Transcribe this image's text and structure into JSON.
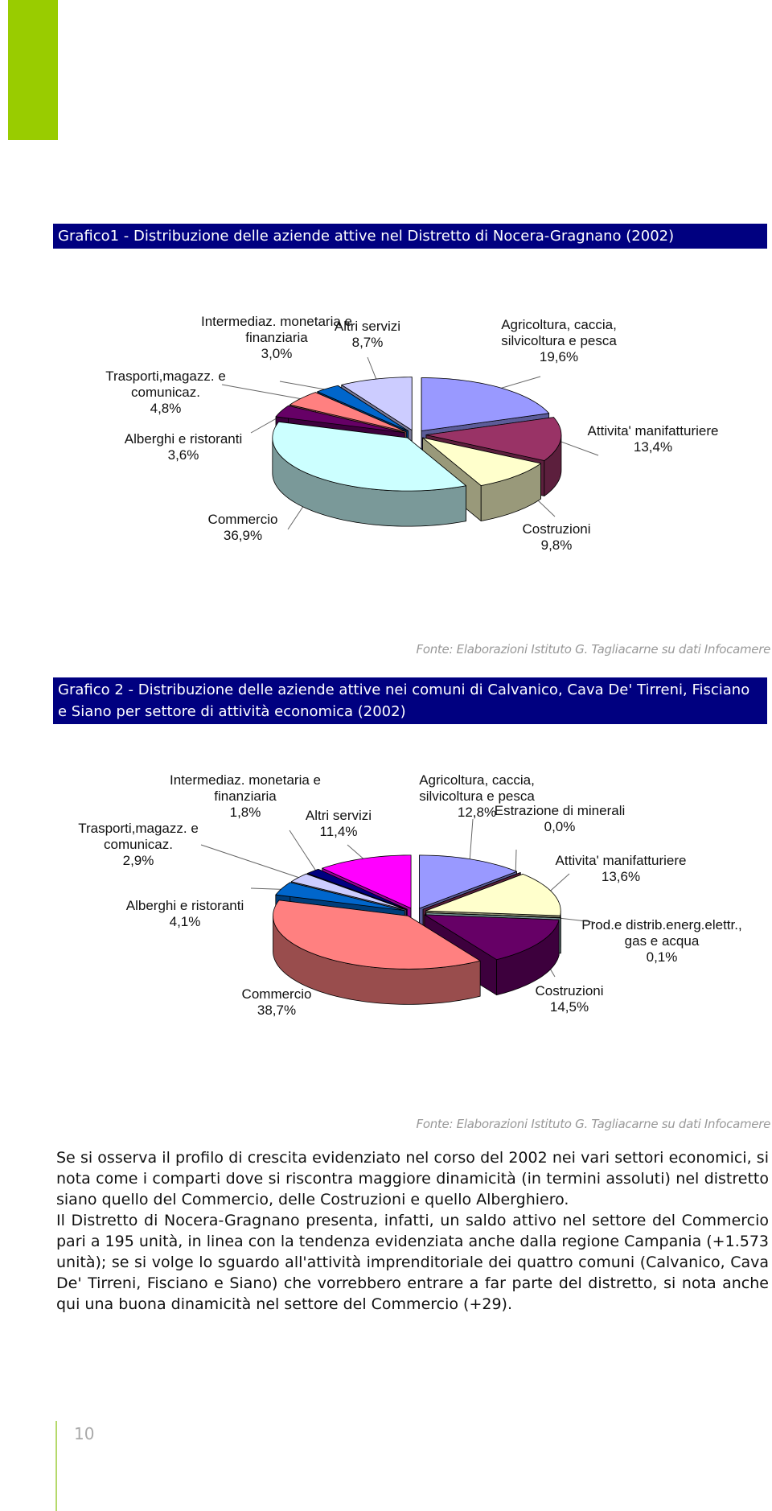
{
  "chart_data": [
    {
      "type": "pie",
      "title": "Grafico1 - Distribuzione delle aziende attive nel Distretto di Nocera-Gragnano (2002)",
      "categories": [
        "Agricoltura, caccia, silvicoltura e pesca",
        "Attivita' manifatturiere",
        "Costruzioni",
        "Commercio",
        "Alberghi e ristoranti",
        "Trasporti,magazz. e comunicaz.",
        "Intermediaz. monetaria e finanziaria",
        "Altri servizi"
      ],
      "values": [
        19.6,
        13.4,
        9.8,
        36.9,
        3.6,
        4.8,
        3.0,
        8.7
      ],
      "value_labels": [
        "19,6%",
        "13,4%",
        "9,8%",
        "36,9%",
        "3,6%",
        "4,8%",
        "3,0%",
        "8,7%"
      ],
      "colors": [
        "#9999ff",
        "#993366",
        "#ffffcc",
        "#ccffff",
        "#660066",
        "#ff8080",
        "#0066cc",
        "#ccccff"
      ],
      "source": "Fonte: Elaborazioni Istituto G. Tagliacarne su dati Infocamere"
    },
    {
      "type": "pie",
      "title": "Grafico 2 - Distribuzione delle aziende attive nei comuni di Calvanico, Cava De' Tirreni, Fisciano e Siano per settore di attività economica (2002)",
      "categories": [
        "Agricoltura, caccia, silvicoltura e pesca",
        "Estrazione di minerali",
        "Attivita' manifatturiere",
        "Prod.e distrib.energ.elettr., gas e acqua",
        "Costruzioni",
        "Commercio",
        "Alberghi e ristoranti",
        "Trasporti,magazz. e comunicaz.",
        "Intermediaz. monetaria e finanziaria",
        "Altri servizi"
      ],
      "values": [
        12.8,
        0.0,
        13.6,
        0.1,
        14.5,
        38.7,
        4.1,
        2.9,
        1.8,
        11.4
      ],
      "value_labels": [
        "12,8%",
        "0,0%",
        "13,6%",
        "0,1%",
        "14,5%",
        "38,7%",
        "4,1%",
        "2,9%",
        "1,8%",
        "11,4%"
      ],
      "colors": [
        "#9999ff",
        "#993366",
        "#ffffcc",
        "#ccffff",
        "#660066",
        "#ff8080",
        "#0066cc",
        "#ccccff",
        "#000080",
        "#ff00ff"
      ],
      "source": "Fonte: Elaborazioni Istituto G. Tagliacarne su dati Infocamere"
    }
  ],
  "paragraphs": [
    "Se si osserva il profilo di crescita evidenziato nel corso del 2002 nei vari settori economici, si nota come i comparti dove si riscontra maggiore dinamicità (in termini assoluti) nel distretto siano quello del Commercio, delle Costruzioni e quello Alberghiero.",
    "Il Distretto di Nocera-Gragnano presenta, infatti, un saldo attivo nel settore del Commercio pari a 195 unità, in linea con la tendenza evidenziata anche dalla regione Campania (+1.573 unità); se si volge lo sguardo all'attività imprenditoriale dei quattro comuni (Calvanico, Cava De' Tirreni, Fisciano e Siano) che vorrebbero entrare a far parte del distretto, si nota anche qui una buona dinamicità nel settore del Commercio (+29)."
  ],
  "page_number": "10"
}
